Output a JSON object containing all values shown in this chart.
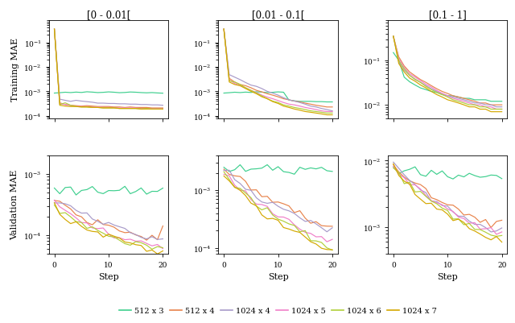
{
  "col_titles": [
    "[0 - 0.01[",
    "[0.01 - 0.1[",
    "[0.1 - 1]"
  ],
  "row_labels": [
    "Training MAE",
    "Validation MAE"
  ],
  "legend_labels": [
    "512 x 3",
    "512 x 4",
    "1024 x 4",
    "1024 x 5",
    "1024 x 6",
    "1024 x 7"
  ],
  "colors": [
    "#3ecf8e",
    "#e8834b",
    "#a89ac9",
    "#f07fc8",
    "#b0cf3a",
    "#d4a800"
  ],
  "xlabel": "Step",
  "steps": [
    0,
    1,
    2,
    3,
    4,
    5,
    6,
    7,
    8,
    9,
    10,
    11,
    12,
    13,
    14,
    15,
    16,
    17,
    18,
    19,
    20
  ],
  "train_00_01": {
    "512x3": [
      0.00085,
      0.00088,
      0.00092,
      0.00089,
      0.00093,
      0.0009,
      0.00096,
      0.00093,
      0.00089,
      0.00091,
      0.00095,
      0.00092,
      0.00088,
      0.0009,
      0.00094,
      0.00092,
      0.00089,
      0.00087,
      0.00089,
      0.00086,
      0.00084
    ],
    "512x4": [
      0.35,
      0.00034,
      0.00029,
      0.00027,
      0.00026,
      0.00025,
      0.00026,
      0.00025,
      0.00024,
      0.00024,
      0.00024,
      0.00023,
      0.00023,
      0.00022,
      0.00023,
      0.00022,
      0.00022,
      0.00022,
      0.00021,
      0.00021,
      0.00021
    ],
    "1024x4": [
      0.35,
      0.00048,
      0.00043,
      0.00039,
      0.00043,
      0.0004,
      0.00038,
      0.00036,
      0.00033,
      0.00033,
      0.00032,
      0.00032,
      0.00031,
      0.00031,
      0.0003,
      0.0003,
      0.00029,
      0.00029,
      0.00028,
      0.00028,
      0.00027
    ],
    "1024x5": [
      0.35,
      0.00031,
      0.00029,
      0.00026,
      0.00025,
      0.00024,
      0.00024,
      0.00023,
      0.00023,
      0.00022,
      0.00022,
      0.00022,
      0.00021,
      0.00021,
      0.00021,
      0.00021,
      0.0002,
      0.0002,
      0.0002,
      0.0002,
      0.0002
    ],
    "1024x6": [
      0.35,
      0.00029,
      0.00034,
      0.00027,
      0.00024,
      0.00023,
      0.00023,
      0.00022,
      0.00022,
      0.00021,
      0.00021,
      0.00021,
      0.0002,
      0.0002,
      0.0002,
      0.0002,
      0.00019,
      0.0002,
      0.00019,
      0.00019,
      0.00019
    ],
    "1024x7": [
      0.35,
      0.00027,
      0.00025,
      0.00024,
      0.00024,
      0.00023,
      0.00023,
      0.00022,
      0.00022,
      0.00021,
      0.00021,
      0.00021,
      0.0002,
      0.0002,
      0.0002,
      0.0002,
      0.00019,
      0.00019,
      0.00019,
      0.00019,
      0.00019
    ]
  },
  "train_001_01": {
    "512x3": [
      0.00085,
      0.00088,
      0.00092,
      0.00089,
      0.00093,
      0.0009,
      0.00096,
      0.00093,
      0.00089,
      0.00091,
      0.00095,
      0.00092,
      0.00044,
      0.00041,
      0.00039,
      0.00039,
      0.00039,
      0.00038,
      0.00038,
      0.00037,
      0.00037
    ],
    "512x4": [
      0.35,
      0.0034,
      0.0024,
      0.0019,
      0.0017,
      0.0014,
      0.0011,
      0.00095,
      0.0008,
      0.0007,
      0.0006,
      0.0005,
      0.00045,
      0.0004,
      0.00037,
      0.00033,
      0.0003,
      0.00027,
      0.00025,
      0.00023,
      0.00023
    ],
    "1024x4": [
      0.35,
      0.0048,
      0.0038,
      0.003,
      0.0023,
      0.0018,
      0.0016,
      0.0013,
      0.001,
      0.00085,
      0.0007,
      0.00055,
      0.00045,
      0.0004,
      0.00035,
      0.0003,
      0.00025,
      0.00023,
      0.0002,
      0.00018,
      0.00016
    ],
    "1024x5": [
      0.35,
      0.0029,
      0.0021,
      0.0017,
      0.0014,
      0.0011,
      0.0009,
      0.0007,
      0.00058,
      0.0005,
      0.00042,
      0.00035,
      0.0003,
      0.00028,
      0.00025,
      0.00022,
      0.0002,
      0.00018,
      0.00016,
      0.00015,
      0.00015
    ],
    "1024x6": [
      0.35,
      0.0027,
      0.0024,
      0.0019,
      0.0014,
      0.0011,
      0.00085,
      0.00065,
      0.0005,
      0.0004,
      0.00035,
      0.00028,
      0.00025,
      0.00022,
      0.0002,
      0.00018,
      0.00016,
      0.00015,
      0.00014,
      0.00013,
      0.00013
    ],
    "1024x7": [
      0.35,
      0.0024,
      0.0019,
      0.0017,
      0.0013,
      0.001,
      0.0008,
      0.0006,
      0.0005,
      0.00038,
      0.00032,
      0.00025,
      0.00022,
      0.00019,
      0.00017,
      0.00015,
      0.00014,
      0.00013,
      0.00012,
      0.00011,
      0.00011
    ]
  },
  "train_01_1": {
    "512x3": [
      0.15,
      0.1,
      0.042,
      0.033,
      0.028,
      0.024,
      0.022,
      0.02,
      0.019,
      0.017,
      0.016,
      0.016,
      0.015,
      0.014,
      0.014,
      0.013,
      0.013,
      0.013,
      0.012,
      0.012,
      0.012
    ],
    "512x4": [
      0.35,
      0.12,
      0.075,
      0.055,
      0.045,
      0.037,
      0.032,
      0.027,
      0.023,
      0.02,
      0.018,
      0.016,
      0.015,
      0.014,
      0.013,
      0.012,
      0.011,
      0.011,
      0.01,
      0.01,
      0.01
    ],
    "1024x4": [
      0.35,
      0.095,
      0.06,
      0.046,
      0.037,
      0.032,
      0.027,
      0.023,
      0.02,
      0.018,
      0.016,
      0.015,
      0.014,
      0.013,
      0.012,
      0.011,
      0.011,
      0.01,
      0.01,
      0.009,
      0.009
    ],
    "1024x5": [
      0.35,
      0.11,
      0.07,
      0.05,
      0.042,
      0.035,
      0.029,
      0.025,
      0.021,
      0.018,
      0.016,
      0.014,
      0.013,
      0.012,
      0.011,
      0.01,
      0.01,
      0.009,
      0.009,
      0.008,
      0.008
    ],
    "1024x6": [
      0.35,
      0.1,
      0.065,
      0.046,
      0.038,
      0.032,
      0.026,
      0.022,
      0.019,
      0.017,
      0.015,
      0.013,
      0.012,
      0.011,
      0.01,
      0.01,
      0.009,
      0.009,
      0.008,
      0.008,
      0.008
    ],
    "1024x7": [
      0.35,
      0.085,
      0.055,
      0.04,
      0.034,
      0.028,
      0.024,
      0.02,
      0.017,
      0.015,
      0.013,
      0.012,
      0.011,
      0.01,
      0.009,
      0.009,
      0.008,
      0.008,
      0.007,
      0.007,
      0.007
    ]
  },
  "val_00_01": {
    "512x3": [
      0.00055,
      0.00048,
      0.00055,
      0.00058,
      0.0005,
      0.00048,
      0.00052,
      0.00058,
      0.00055,
      0.00048,
      0.00055,
      0.00048,
      0.00052,
      0.00058,
      0.00048,
      0.00055,
      0.00058,
      0.00052,
      0.00048,
      0.0005,
      0.00055
    ],
    "512x4": [
      0.00038,
      0.00032,
      0.00028,
      0.00025,
      0.00023,
      0.0002,
      0.00018,
      0.00016,
      0.00017,
      0.00014,
      0.00013,
      0.00014,
      0.00012,
      0.00011,
      0.00012,
      0.00011,
      9.5e-05,
      8.8e-05,
      9.5e-05,
      8.5e-05,
      0.00013
    ],
    "1024x4": [
      0.00032,
      0.00035,
      0.0003,
      0.00028,
      0.00026,
      0.00024,
      0.00022,
      0.0002,
      0.00018,
      0.00017,
      0.00015,
      0.00014,
      0.00013,
      0.00012,
      0.00011,
      0.0001,
      0.0001,
      9.5e-05,
      9e-05,
      8.5e-05,
      8.5e-05
    ],
    "1024x5": [
      0.00035,
      0.00028,
      0.00025,
      0.00022,
      0.0002,
      0.00018,
      0.00016,
      0.00014,
      0.00013,
      0.00012,
      0.00011,
      0.0001,
      9.5e-05,
      8.8e-05,
      8.2e-05,
      7.8e-05,
      7.5e-05,
      7e-05,
      6.8e-05,
      6.5e-05,
      6.5e-05
    ],
    "1024x6": [
      0.00035,
      0.00025,
      0.00022,
      0.0002,
      0.00018,
      0.00016,
      0.00014,
      0.00013,
      0.00012,
      0.00011,
      0.0001,
      9e-05,
      8.5e-05,
      8e-05,
      7.5e-05,
      7e-05,
      6.8e-05,
      6.5e-05,
      6.2e-05,
      5.8e-05,
      5.8e-05
    ],
    "1024x7": [
      0.00032,
      0.00022,
      0.00019,
      0.00017,
      0.00015,
      0.00014,
      0.00013,
      0.00012,
      0.00011,
      0.0001,
      9.5e-05,
      9e-05,
      8.5e-05,
      7.8e-05,
      7.2e-05,
      6.8e-05,
      6.5e-05,
      6e-05,
      5.8e-05,
      5.5e-05,
      5.5e-05
    ]
  },
  "val_001_01": {
    "512x3": [
      0.0026,
      0.0023,
      0.0025,
      0.0027,
      0.0023,
      0.0021,
      0.0023,
      0.0025,
      0.0027,
      0.0025,
      0.0023,
      0.0021,
      0.0019,
      0.0021,
      0.0025,
      0.0023,
      0.0022,
      0.0023,
      0.0025,
      0.0023,
      0.0022
    ],
    "512x4": [
      0.0023,
      0.0019,
      0.002,
      0.0016,
      0.0013,
      0.0011,
      0.001,
      0.00085,
      0.00075,
      0.00065,
      0.0006,
      0.00055,
      0.0005,
      0.00045,
      0.0004,
      0.00035,
      0.0003,
      0.00028,
      0.00025,
      0.00022,
      0.00022
    ],
    "1024x4": [
      0.0023,
      0.002,
      0.0016,
      0.0013,
      0.0011,
      0.0009,
      0.0008,
      0.0007,
      0.0006,
      0.00055,
      0.00048,
      0.00044,
      0.0004,
      0.00036,
      0.00033,
      0.0003,
      0.00028,
      0.00025,
      0.00023,
      0.00021,
      0.00021
    ],
    "1024x5": [
      0.002,
      0.0016,
      0.0013,
      0.0011,
      0.0009,
      0.00075,
      0.00062,
      0.00055,
      0.00048,
      0.00042,
      0.00036,
      0.00032,
      0.00028,
      0.00025,
      0.00023,
      0.00021,
      0.00019,
      0.00017,
      0.00015,
      0.00014,
      0.00014
    ],
    "1024x6": [
      0.002,
      0.0015,
      0.0012,
      0.001,
      0.00085,
      0.0007,
      0.00058,
      0.0005,
      0.00045,
      0.00038,
      0.00033,
      0.00029,
      0.00025,
      0.00022,
      0.0002,
      0.00018,
      0.00015,
      0.00013,
      0.00012,
      0.00011,
      0.0001
    ],
    "1024x7": [
      0.0018,
      0.0013,
      0.0011,
      0.0009,
      0.00075,
      0.0006,
      0.0005,
      0.00042,
      0.00035,
      0.0003,
      0.00028,
      0.00024,
      0.00021,
      0.00019,
      0.00017,
      0.00015,
      0.00013,
      0.00012,
      0.0001,
      9e-05,
      8.5e-05
    ]
  },
  "val_01_1": {
    "512x3": [
      0.0082,
      0.0068,
      0.0075,
      0.007,
      0.0075,
      0.0068,
      0.0065,
      0.007,
      0.0068,
      0.0065,
      0.006,
      0.0058,
      0.0055,
      0.0062,
      0.0068,
      0.0065,
      0.0062,
      0.0065,
      0.0068,
      0.0065,
      0.006
    ],
    "512x4": [
      0.0085,
      0.0065,
      0.0058,
      0.0052,
      0.0046,
      0.004,
      0.0035,
      0.0031,
      0.0028,
      0.0025,
      0.0023,
      0.0021,
      0.0019,
      0.0017,
      0.0016,
      0.0014,
      0.0013,
      0.0012,
      0.0011,
      0.0011,
      0.0014
    ],
    "1024x4": [
      0.0088,
      0.007,
      0.0055,
      0.0047,
      0.0041,
      0.0035,
      0.0031,
      0.0027,
      0.0024,
      0.0021,
      0.0019,
      0.0017,
      0.0015,
      0.0014,
      0.0013,
      0.0012,
      0.0011,
      0.001,
      0.0009,
      0.0009,
      0.001
    ],
    "1024x5": [
      0.0086,
      0.0065,
      0.0053,
      0.0046,
      0.0039,
      0.0034,
      0.003,
      0.0026,
      0.0023,
      0.002,
      0.0018,
      0.0016,
      0.0014,
      0.0013,
      0.0012,
      0.0011,
      0.001,
      0.0009,
      0.0009,
      0.00085,
      0.00082
    ],
    "1024x6": [
      0.0086,
      0.0063,
      0.005,
      0.0043,
      0.0037,
      0.0031,
      0.0027,
      0.0024,
      0.0021,
      0.0018,
      0.0016,
      0.0014,
      0.0013,
      0.0012,
      0.0011,
      0.001,
      0.0009,
      0.00082,
      0.00076,
      0.00072,
      0.0007
    ],
    "1024x7": [
      0.0084,
      0.006,
      0.0048,
      0.004,
      0.0034,
      0.0029,
      0.0025,
      0.0022,
      0.0019,
      0.0017,
      0.0015,
      0.0013,
      0.0012,
      0.0011,
      0.001,
      0.0009,
      0.00082,
      0.00076,
      0.0007,
      0.00065,
      0.0006
    ]
  }
}
